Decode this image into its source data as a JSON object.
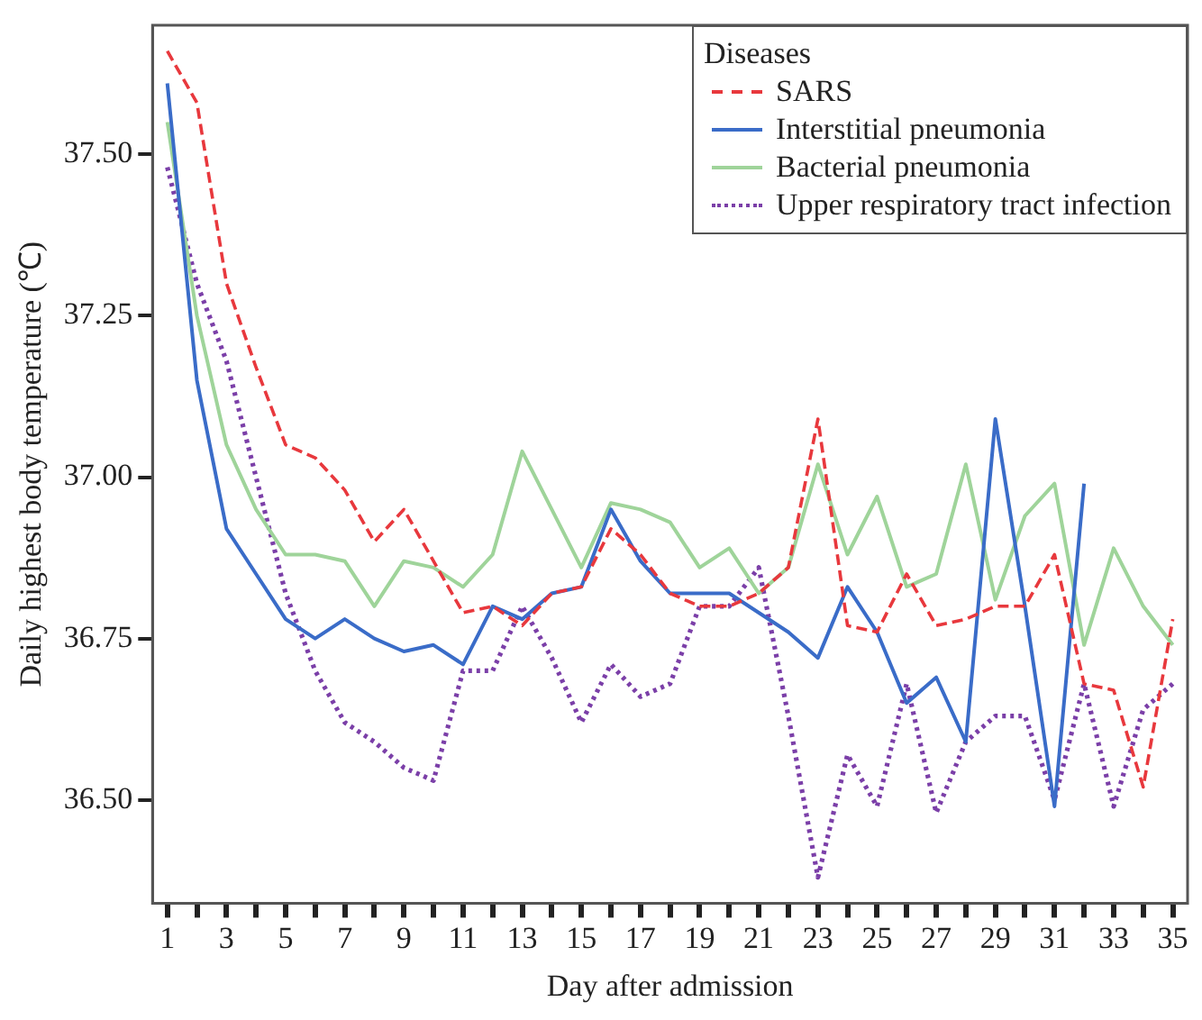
{
  "chart_data": {
    "type": "line",
    "xlabel": "Day after admission",
    "ylabel": "Daily highest body temperature (℃)",
    "legend_title": "Diseases",
    "legend": "top right",
    "grid": false,
    "marker": "none",
    "x": [
      1,
      2,
      3,
      4,
      5,
      6,
      7,
      8,
      9,
      10,
      11,
      12,
      13,
      14,
      15,
      16,
      17,
      18,
      19,
      20,
      21,
      22,
      23,
      24,
      25,
      26,
      27,
      28,
      29,
      30,
      31,
      32,
      33,
      34,
      35
    ],
    "xlim": [
      0.5,
      35.5
    ],
    "xticks": [
      1,
      {
        "value": 2,
        "label": null
      },
      3,
      {
        "value": 4,
        "label": null
      },
      5,
      {
        "value": 6,
        "label": null
      },
      7,
      {
        "value": 8,
        "label": null
      },
      9,
      {
        "value": 10,
        "label": null
      },
      11,
      {
        "value": 12,
        "label": null
      },
      13,
      {
        "value": 14,
        "label": null
      },
      15,
      {
        "value": 16,
        "label": null
      },
      17,
      {
        "value": 18,
        "label": null
      },
      19,
      {
        "value": 20,
        "label": null
      },
      21,
      {
        "value": 22,
        "label": null
      },
      23,
      {
        "value": 24,
        "label": null
      },
      25,
      {
        "value": 26,
        "label": null
      },
      27,
      {
        "value": 28,
        "label": null
      },
      29,
      {
        "value": 30,
        "label": null
      },
      31,
      {
        "value": 32,
        "label": null
      },
      33,
      {
        "value": 34,
        "label": null
      },
      35
    ],
    "ylim": [
      36.34,
      37.7
    ],
    "yticks": [
      {
        "value": 36.5,
        "label": "36.50"
      },
      {
        "value": 36.75,
        "label": "36.75"
      },
      {
        "value": 37,
        "label": "37.00"
      },
      {
        "value": 37.25,
        "label": "37.25"
      },
      {
        "value": 37.5,
        "label": "37.50"
      }
    ],
    "series": [
      {
        "name": "SARS",
        "color": "#e8383d",
        "line_style": "dashed",
        "values": [
          37.66,
          37.58,
          37.3,
          37.17,
          37.05,
          37.03,
          36.98,
          36.9,
          36.95,
          36.87,
          36.79,
          36.8,
          36.77,
          36.82,
          36.83,
          36.92,
          36.88,
          36.82,
          36.8,
          36.8,
          36.82,
          36.86,
          37.09,
          36.77,
          36.76,
          36.85,
          36.77,
          36.78,
          36.8,
          36.8,
          36.88,
          36.68,
          36.67,
          36.52,
          36.78
        ]
      },
      {
        "name": "Interstitial pneumonia",
        "color": "#3a6cc8",
        "line_style": "solid",
        "values": [
          37.61,
          37.15,
          36.92,
          36.85,
          36.78,
          36.75,
          36.78,
          36.75,
          36.73,
          36.74,
          36.71,
          36.8,
          36.78,
          36.82,
          36.83,
          36.95,
          36.87,
          36.82,
          36.82,
          36.82,
          36.79,
          36.76,
          36.72,
          36.83,
          36.76,
          36.65,
          36.69,
          36.59,
          37.09,
          36.8,
          36.49,
          36.99,
          null,
          null,
          null
        ]
      },
      {
        "name": "Bacterial pneumonia",
        "color": "#9fd49a",
        "line_style": "solid",
        "values": [
          37.55,
          37.25,
          37.05,
          36.95,
          36.88,
          36.88,
          36.87,
          36.8,
          36.87,
          36.86,
          36.83,
          36.88,
          37.04,
          36.95,
          36.86,
          36.96,
          36.95,
          36.93,
          36.86,
          36.89,
          36.82,
          36.86,
          37.02,
          36.88,
          36.97,
          36.83,
          36.85,
          37.02,
          36.81,
          36.94,
          36.99,
          36.74,
          36.89,
          36.8,
          36.74
        ]
      },
      {
        "name": "Upper respiratory tract infection",
        "color": "#7b3fa8",
        "line_style": "dotted",
        "values": [
          37.48,
          37.3,
          37.18,
          37.0,
          36.82,
          36.7,
          36.62,
          36.59,
          36.55,
          36.53,
          36.7,
          36.7,
          36.8,
          36.72,
          36.62,
          36.71,
          36.66,
          36.68,
          36.8,
          36.8,
          36.86,
          36.63,
          36.38,
          36.57,
          36.49,
          36.68,
          36.48,
          36.59,
          36.63,
          36.63,
          36.5,
          36.68,
          36.49,
          36.64,
          36.68
        ]
      }
    ]
  }
}
